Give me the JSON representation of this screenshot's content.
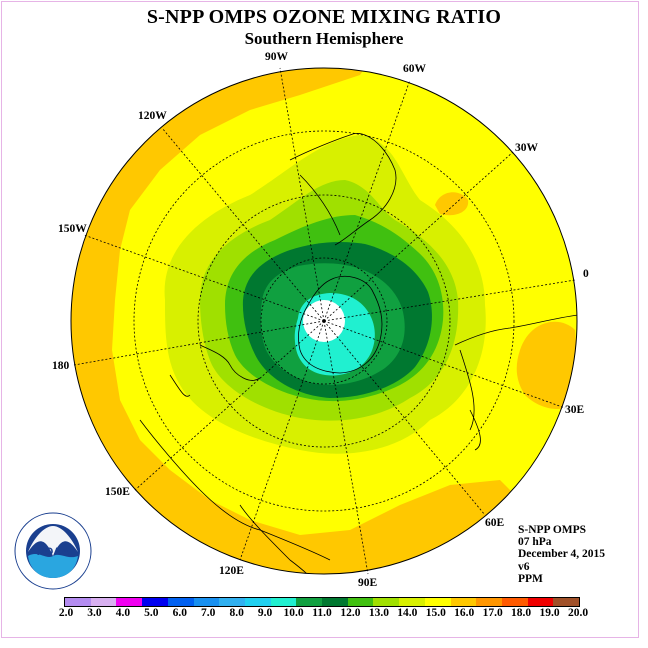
{
  "title": "S-NPP OMPS OZONE MIXING RATIO",
  "subtitle": "Southern Hemisphere",
  "longitude_labels": {
    "w90": "90W",
    "w60": "60W",
    "w30": "30W",
    "e0": "0",
    "e30": "30E",
    "e60": "60E",
    "e90": "90E",
    "e120": "120E",
    "e150": "150E",
    "e180": "180",
    "w150": "150W",
    "w120": "120W"
  },
  "info": {
    "instrument": "S-NPP OMPS",
    "level": "07 hPa",
    "date": "December 4, 2015",
    "version": "v6",
    "units": "PPM"
  },
  "colorbar": {
    "labels": [
      "2.0",
      "3.0",
      "4.0",
      "5.0",
      "6.0",
      "7.0",
      "8.0",
      "9.0",
      "10.0",
      "11.0",
      "12.0",
      "13.0",
      "14.0",
      "15.0",
      "16.0",
      "17.0",
      "18.0",
      "19.0",
      "20.0"
    ],
    "colors": [
      "#b48cf0",
      "#d8b0f0",
      "#f000f0",
      "#0000f0",
      "#0060f0",
      "#1890f0",
      "#30b0f0",
      "#20d0f0",
      "#20f0d0",
      "#10a040",
      "#007830",
      "#40c010",
      "#a0e000",
      "#d8f000",
      "#ffff00",
      "#ffc800",
      "#ff9600",
      "#ff5a00",
      "#f00000",
      "#a05028"
    ]
  },
  "logo_text": "NOAA",
  "logo_ring_text": "NATIONAL OCEANIC AND ATMOSPHERIC ADMINISTRATION · U.S. DEPARTMENT OF COMMERCE"
}
